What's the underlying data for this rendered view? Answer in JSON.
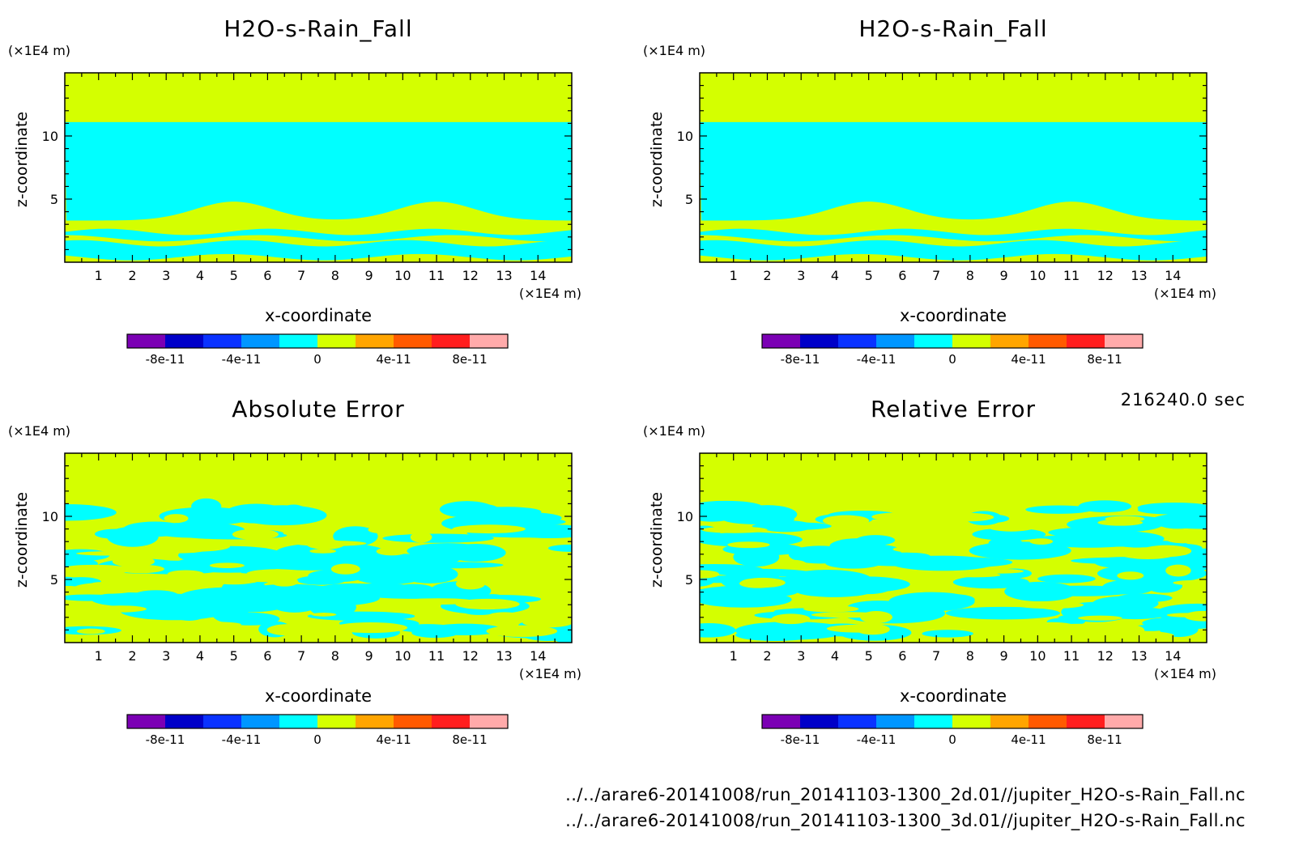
{
  "figure": {
    "time_label": "216240.0 sec",
    "files": [
      "../../arare6-20141008/run_20141103-1300_2d.01//jupiter_H2O-s-Rain_Fall.nc",
      "../../arare6-20141008/run_20141103-1300_3d.01//jupiter_H2O-s-Rain_Fall.nc"
    ]
  },
  "colors": {
    "green": "#d4ff00",
    "cyan": "#00ffff"
  },
  "chart_data": [
    {
      "type": "heatmap",
      "title": "H2O-s-Rain_Fall",
      "xlabel": "x-coordinate",
      "ylabel": "z-coordinate",
      "xunit": "(×1E4 m)",
      "yunit": "(×1E4 m)",
      "xlim": [
        0,
        15
      ],
      "ylim": [
        0,
        15
      ],
      "xticks": [
        "1",
        "2",
        "3",
        "4",
        "5",
        "6",
        "7",
        "8",
        "9",
        "10",
        "11",
        "12",
        "13",
        "14"
      ],
      "yticks": [
        "5",
        "10"
      ],
      "pattern": "layered",
      "colorbar": {
        "colors": [
          "#7b00b4",
          "#0000c8",
          "#0a32ff",
          "#0096ff",
          "#00ffff",
          "#d4ff00",
          "#ffa500",
          "#ff5a00",
          "#ff1e1e",
          "#ffaaaa"
        ],
        "labels": [
          "-8e-11",
          "-4e-11",
          "0",
          "4e-11",
          "8e-11"
        ]
      }
    },
    {
      "type": "heatmap",
      "title": "H2O-s-Rain_Fall",
      "xlabel": "x-coordinate",
      "ylabel": "z-coordinate",
      "xunit": "(×1E4 m)",
      "yunit": "(×1E4 m)",
      "xlim": [
        0,
        15
      ],
      "ylim": [
        0,
        15
      ],
      "xticks": [
        "1",
        "2",
        "3",
        "4",
        "5",
        "6",
        "7",
        "8",
        "9",
        "10",
        "11",
        "12",
        "13",
        "14"
      ],
      "yticks": [
        "5",
        "10"
      ],
      "pattern": "layered",
      "colorbar": {
        "colors": [
          "#7b00b4",
          "#0000c8",
          "#0a32ff",
          "#0096ff",
          "#00ffff",
          "#d4ff00",
          "#ffa500",
          "#ff5a00",
          "#ff1e1e",
          "#ffaaaa"
        ],
        "labels": [
          "-8e-11",
          "-4e-11",
          "0",
          "4e-11",
          "8e-11"
        ]
      }
    },
    {
      "type": "heatmap",
      "title": "Absolute Error",
      "xlabel": "x-coordinate",
      "ylabel": "z-coordinate",
      "xunit": "(×1E4 m)",
      "yunit": "(×1E4 m)",
      "xlim": [
        0,
        15
      ],
      "ylim": [
        0,
        15
      ],
      "xticks": [
        "1",
        "2",
        "3",
        "4",
        "5",
        "6",
        "7",
        "8",
        "9",
        "10",
        "11",
        "12",
        "13",
        "14"
      ],
      "yticks": [
        "5",
        "10"
      ],
      "pattern": "turbulent",
      "colorbar": {
        "colors": [
          "#7b00b4",
          "#0000c8",
          "#0a32ff",
          "#0096ff",
          "#00ffff",
          "#d4ff00",
          "#ffa500",
          "#ff5a00",
          "#ff1e1e",
          "#ffaaaa"
        ],
        "labels": [
          "-8e-11",
          "-4e-11",
          "0",
          "4e-11",
          "8e-11"
        ]
      }
    },
    {
      "type": "heatmap",
      "title": "Relative Error",
      "xlabel": "x-coordinate",
      "ylabel": "z-coordinate",
      "xunit": "(×1E4 m)",
      "yunit": "(×1E4 m)",
      "xlim": [
        0,
        15
      ],
      "ylim": [
        0,
        15
      ],
      "xticks": [
        "1",
        "2",
        "3",
        "4",
        "5",
        "6",
        "7",
        "8",
        "9",
        "10",
        "11",
        "12",
        "13",
        "14"
      ],
      "yticks": [
        "5",
        "10"
      ],
      "pattern": "turbulent",
      "colorbar": {
        "colors": [
          "#7b00b4",
          "#0000c8",
          "#0a32ff",
          "#0096ff",
          "#00ffff",
          "#d4ff00",
          "#ffa500",
          "#ff5a00",
          "#ff1e1e",
          "#ffaaaa"
        ],
        "labels": [
          "-8e-11",
          "-4e-11",
          "0",
          "4e-11",
          "8e-11"
        ]
      }
    }
  ]
}
